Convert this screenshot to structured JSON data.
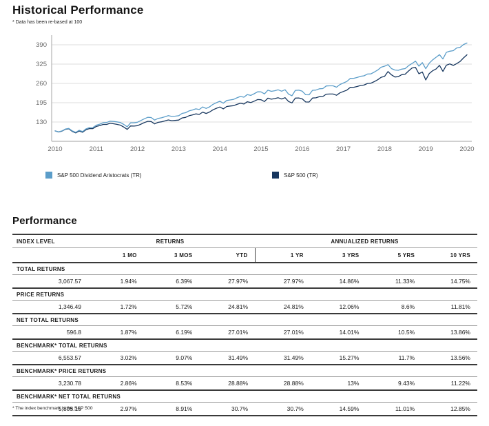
{
  "header": {
    "title": "Historical Performance",
    "footnote": "* Data has been re-based at 100"
  },
  "chart_data": {
    "type": "line",
    "title": "Historical Performance",
    "note": "Data has been re-based at 100",
    "x_tick_labels": [
      "2010",
      "2011",
      "2012",
      "2013",
      "2014",
      "2015",
      "2016",
      "2017",
      "2018",
      "2019",
      "2020"
    ],
    "y_ticks": [
      130,
      195,
      260,
      325,
      390
    ],
    "ylim": [
      65,
      418
    ],
    "grid": true,
    "legend_position": "bottom",
    "x_unit": "monthly from Jan 2010 to Dec 2019, re-based at 100",
    "colors": {
      "aristocrats": "#5b9dc9",
      "sp500": "#16365e",
      "gridline": "#dedede",
      "axis": "#b5b5b5",
      "tick_text": "#6a6a6a"
    },
    "series": [
      {
        "name": "S&P 500 Dividend Aristocrats (TR)",
        "color": "#5b9dc9",
        "values": [
          100,
          96.7,
          100.0,
          106.4,
          108.4,
          100.0,
          95.2,
          102.1,
          97.8,
          106.8,
          111.1,
          111.5,
          119.4,
          122.9,
          127.6,
          128.4,
          132.9,
          132.0,
          130.4,
          128.3,
          121.9,
          113.9,
          127.1,
          127.3,
          129.2,
          135.2,
          141.0,
          145.8,
          145.0,
          136.4,
          142.1,
          144.2,
          147.6,
          151.4,
          148.8,
          149.8,
          151.2,
          159.1,
          161.3,
          167.4,
          170.5,
          174.4,
          172.1,
          180.9,
          175.7,
          181.1,
          189.4,
          195.1,
          200.0,
          193.3,
          202.5,
          204.4,
          206.2,
          211.4,
          216.2,
          213.6,
          222.5,
          219.5,
          225.2,
          231.7,
          231.4,
          224.6,
          237.2,
          233.4,
          235.4,
          238.5,
          233.8,
          238.6,
          224.1,
          218.5,
          236.6,
          237.3,
          233.7,
          222.0,
          221.8,
          236.8,
          237.5,
          241.8,
          242.5,
          251.4,
          251.8,
          251.8,
          247.2,
          256.4,
          261.4,
          266.4,
          277.0,
          277.1,
          279.9,
          283.9,
          285.5,
          291.5,
          292.1,
          298.3,
          305.1,
          314.6,
          318.1,
          323.2,
          310.0,
          305.0,
          304.0,
          308.0,
          310.0,
          320.0,
          327.0,
          335.0,
          318.0,
          330.0,
          309.4,
          328.0,
          339.5,
          348.0,
          356.7,
          342.4,
          364.7,
          368.3,
          370.2,
          379.4,
          381.3,
          390.9,
          396.0
        ]
      },
      {
        "name": "S&P 500 (TR)",
        "color": "#16365e",
        "values": [
          100,
          96.4,
          99.4,
          105.4,
          107.1,
          98.5,
          93.4,
          99.9,
          95.4,
          103.9,
          107.8,
          107.8,
          115.1,
          117.9,
          121.9,
          121.9,
          125.6,
          124.2,
          122.1,
          119.6,
          113.1,
          105.2,
          116.7,
          116.4,
          117.6,
          122.9,
          128.2,
          132.4,
          131.6,
          123.7,
          128.8,
          130.6,
          133.6,
          137.0,
          134.5,
          135.3,
          136.5,
          143.6,
          145.6,
          151.1,
          154.0,
          157.5,
          155.5,
          163.4,
          158.7,
          163.6,
          171.1,
          176.2,
          180.6,
          174.3,
          182.3,
          183.8,
          185.1,
          189.4,
          193.4,
          190.7,
          198.3,
          195.5,
          200.2,
          205.6,
          205.0,
          198.9,
          210.3,
          206.9,
          208.9,
          211.6,
          207.6,
          211.9,
          199.2,
          194.2,
          210.5,
          211.1,
          207.9,
          197.5,
          197.3,
          210.7,
          211.5,
          215.3,
          215.9,
          223.9,
          224.2,
          224.2,
          220.1,
          228.3,
          232.8,
          237.2,
          246.7,
          247.0,
          249.5,
          253.0,
          254.5,
          259.8,
          260.6,
          266.1,
          272.2,
          280.6,
          283.7,
          299.9,
          288.8,
          281.6,
          282.7,
          289.5,
          291.2,
          302.0,
          312.0,
          313.9,
          292.6,
          298.5,
          271.6,
          293.3,
          302.7,
          308.5,
          320.8,
          300.3,
          321.3,
          325.8,
          320.6,
          326.7,
          333.9,
          345.9,
          356.3
        ]
      }
    ]
  },
  "performance": {
    "title": "Performance",
    "footnote": "* The index benchmark is the  S&P 500",
    "group_headers": {
      "index_level": "INDEX LEVEL",
      "returns": "RETURNS",
      "annualized": "ANNUALIZED RETURNS"
    },
    "columns": [
      "",
      "1 MO",
      "3 MOS",
      "YTD",
      "1 YR",
      "3 YRS",
      "5 YRS",
      "10 YRS"
    ],
    "sections": [
      {
        "label": "TOTAL RETURNS",
        "values": [
          "3,067.57",
          "1.94%",
          "6.39%",
          "27.97%",
          "27.97%",
          "14.86%",
          "11.33%",
          "14.75%"
        ]
      },
      {
        "label": "PRICE RETURNS",
        "values": [
          "1,346.49",
          "1.72%",
          "5.72%",
          "24.81%",
          "24.81%",
          "12.06%",
          "8.6%",
          "11.81%"
        ]
      },
      {
        "label": "NET TOTAL RETURNS",
        "values": [
          "596.8",
          "1.87%",
          "6.19%",
          "27.01%",
          "27.01%",
          "14.01%",
          "10.5%",
          "13.86%"
        ]
      },
      {
        "label": "BENCHMARK* TOTAL RETURNS",
        "values": [
          "6,553.57",
          "3.02%",
          "9.07%",
          "31.49%",
          "31.49%",
          "15.27%",
          "11.7%",
          "13.56%"
        ]
      },
      {
        "label": "BENCHMARK* PRICE RETURNS",
        "values": [
          "3,230.78",
          "2.86%",
          "8.53%",
          "28.88%",
          "28.88%",
          "13%",
          "9.43%",
          "11.22%"
        ]
      },
      {
        "label": "BENCHMARK* NET TOTAL RETURNS",
        "values": [
          "5,805.15",
          "2.97%",
          "8.91%",
          "30.7%",
          "30.7%",
          "14.59%",
          "11.01%",
          "12.85%"
        ]
      }
    ]
  }
}
